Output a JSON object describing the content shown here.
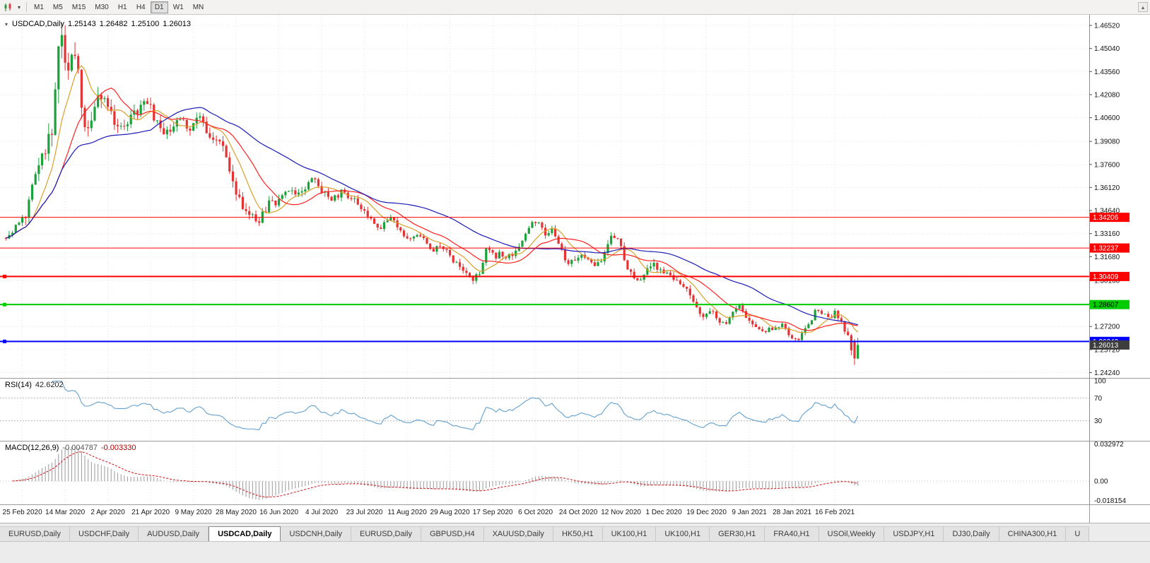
{
  "toolbar": {
    "timeframes": [
      {
        "label": "M1",
        "active": false
      },
      {
        "label": "M5",
        "active": false
      },
      {
        "label": "M15",
        "active": false
      },
      {
        "label": "M30",
        "active": false
      },
      {
        "label": "H1",
        "active": false
      },
      {
        "label": "H4",
        "active": false
      },
      {
        "label": "D1",
        "active": true
      },
      {
        "label": "W1",
        "active": false
      },
      {
        "label": "MN",
        "active": false
      }
    ],
    "overflow_icon": "▴",
    "chart_dropdown_icon": "▾"
  },
  "chart_header": {
    "symbol": "USDCAD,Daily",
    "open": "1.25143",
    "high": "1.26482",
    "low": "1.25100",
    "close": "1.26013"
  },
  "indicators": {
    "rsi": {
      "name": "RSI(14)",
      "value": "42.6202"
    },
    "macd": {
      "name": "MACD(12,26,9)",
      "value_main": "-0.004787",
      "value_signal": "-0.003330"
    }
  },
  "tabs": [
    {
      "label": "EURUSD,Daily",
      "active": false
    },
    {
      "label": "USDCHF,Daily",
      "active": false
    },
    {
      "label": "AUDUSD,Daily",
      "active": false
    },
    {
      "label": "USDCAD,Daily",
      "active": true
    },
    {
      "label": "USDCNH,Daily",
      "active": false
    },
    {
      "label": "EURUSD,Daily",
      "active": false
    },
    {
      "label": "GBPUSD,H4",
      "active": false
    },
    {
      "label": "XAUUSD,Daily",
      "active": false
    },
    {
      "label": "HK50,H1",
      "active": false
    },
    {
      "label": "UK100,H1",
      "active": false
    },
    {
      "label": "UK100,H1",
      "active": false
    },
    {
      "label": "GER30,H1",
      "active": false
    },
    {
      "label": "FRA40,H1",
      "active": false
    },
    {
      "label": "USOil,Weekly",
      "active": false
    },
    {
      "label": "USDJPY,H1",
      "active": false
    },
    {
      "label": "DJ30,Daily",
      "active": false
    },
    {
      "label": "CHINA300,H1",
      "active": false
    },
    {
      "label": "U",
      "active": false
    }
  ],
  "chart_data": {
    "type": "candlestick",
    "symbol": "USDCAD",
    "timeframe": "Daily",
    "last_bar": {
      "open": 1.25143,
      "high": 1.26482,
      "low": 1.251,
      "close": 1.26013
    },
    "y_range": [
      1.239,
      1.472
    ],
    "price_ticks": [
      "1.46520",
      "1.45040",
      "1.43560",
      "1.42080",
      "1.40600",
      "1.39080",
      "1.37600",
      "1.36120",
      "1.34640",
      "1.33160",
      "1.31680",
      "1.30160",
      "1.28680",
      "1.27200",
      "1.25720",
      "1.24240"
    ],
    "x_labels": [
      "25 Feb 2020",
      "14 Mar 2020",
      "2 Apr 2020",
      "21 Apr 2020",
      "9 May 2020",
      "28 May 2020",
      "16 Jun 2020",
      "4 Jul 2020",
      "23 Jul 2020",
      "11 Aug 2020",
      "29 Aug 2020",
      "17 Sep 2020",
      "6 Oct 2020",
      "24 Oct 2020",
      "12 Nov 2020",
      "1 Dec 2020",
      "19 Dec 2020",
      "9 Jan 2021",
      "28 Jan 2021",
      "16 Feb 2021"
    ],
    "n_candles": 260,
    "x_label_first_index": 5,
    "x_label_step": 13,
    "seed": 20210219,
    "up_color": "#1ba13a",
    "down_color": "#e63232",
    "close_anchors": [
      [
        0,
        1.329
      ],
      [
        3,
        1.333
      ],
      [
        5,
        1.34
      ],
      [
        7,
        1.342
      ],
      [
        9,
        1.366
      ],
      [
        11,
        1.375
      ],
      [
        13,
        1.383
      ],
      [
        15,
        1.405
      ],
      [
        16,
        1.435
      ],
      [
        17,
        1.46
      ],
      [
        18,
        1.448
      ],
      [
        19,
        1.434
      ],
      [
        21,
        1.447
      ],
      [
        23,
        1.428
      ],
      [
        25,
        1.4
      ],
      [
        27,
        1.409
      ],
      [
        29,
        1.418
      ],
      [
        31,
        1.421
      ],
      [
        33,
        1.406
      ],
      [
        35,
        1.398
      ],
      [
        37,
        1.403
      ],
      [
        39,
        1.409
      ],
      [
        41,
        1.412
      ],
      [
        43,
        1.417
      ],
      [
        45,
        1.41
      ],
      [
        47,
        1.401
      ],
      [
        49,
        1.394
      ],
      [
        51,
        1.399
      ],
      [
        53,
        1.406
      ],
      [
        55,
        1.402
      ],
      [
        57,
        1.397
      ],
      [
        59,
        1.405
      ],
      [
        61,
        1.402
      ],
      [
        63,
        1.393
      ],
      [
        65,
        1.39
      ],
      [
        67,
        1.386
      ],
      [
        69,
        1.368
      ],
      [
        71,
        1.355
      ],
      [
        73,
        1.348
      ],
      [
        75,
        1.344
      ],
      [
        77,
        1.338
      ],
      [
        79,
        1.345
      ],
      [
        81,
        1.354
      ],
      [
        83,
        1.352
      ],
      [
        85,
        1.357
      ],
      [
        87,
        1.36
      ],
      [
        89,
        1.355
      ],
      [
        91,
        1.36
      ],
      [
        93,
        1.365
      ],
      [
        95,
        1.367
      ],
      [
        97,
        1.359
      ],
      [
        99,
        1.354
      ],
      [
        101,
        1.356
      ],
      [
        103,
        1.358
      ],
      [
        105,
        1.355
      ],
      [
        107,
        1.352
      ],
      [
        109,
        1.346
      ],
      [
        111,
        1.341
      ],
      [
        113,
        1.337
      ],
      [
        115,
        1.335
      ],
      [
        117,
        1.342
      ],
      [
        119,
        1.338
      ],
      [
        121,
        1.331
      ],
      [
        123,
        1.328
      ],
      [
        125,
        1.332
      ],
      [
        127,
        1.329
      ],
      [
        129,
        1.325
      ],
      [
        131,
        1.321
      ],
      [
        133,
        1.323
      ],
      [
        135,
        1.32
      ],
      [
        137,
        1.314
      ],
      [
        139,
        1.308
      ],
      [
        141,
        1.304
      ],
      [
        143,
        1.301
      ],
      [
        145,
        1.309
      ],
      [
        147,
        1.322
      ],
      [
        149,
        1.317
      ],
      [
        151,
        1.319
      ],
      [
        153,
        1.316
      ],
      [
        155,
        1.318
      ],
      [
        157,
        1.324
      ],
      [
        159,
        1.332
      ],
      [
        161,
        1.34
      ],
      [
        163,
        1.338
      ],
      [
        165,
        1.331
      ],
      [
        167,
        1.333
      ],
      [
        169,
        1.324
      ],
      [
        171,
        1.314
      ],
      [
        173,
        1.313
      ],
      [
        175,
        1.317
      ],
      [
        177,
        1.318
      ],
      [
        179,
        1.312
      ],
      [
        181,
        1.312
      ],
      [
        183,
        1.32
      ],
      [
        185,
        1.332
      ],
      [
        187,
        1.327
      ],
      [
        189,
        1.313
      ],
      [
        191,
        1.306
      ],
      [
        193,
        1.303
      ],
      [
        195,
        1.306
      ],
      [
        197,
        1.313
      ],
      [
        199,
        1.309
      ],
      [
        201,
        1.306
      ],
      [
        203,
        1.303
      ],
      [
        205,
        1.3
      ],
      [
        207,
        1.296
      ],
      [
        209,
        1.292
      ],
      [
        211,
        1.283
      ],
      [
        213,
        1.279
      ],
      [
        215,
        1.282
      ],
      [
        217,
        1.277
      ],
      [
        219,
        1.274
      ],
      [
        221,
        1.277
      ],
      [
        223,
        1.286
      ],
      [
        225,
        1.281
      ],
      [
        227,
        1.276
      ],
      [
        229,
        1.271
      ],
      [
        231,
        1.268
      ],
      [
        233,
        1.272
      ],
      [
        235,
        1.27
      ],
      [
        237,
        1.273
      ],
      [
        239,
        1.267
      ],
      [
        241,
        1.263
      ],
      [
        243,
        1.268
      ],
      [
        245,
        1.274
      ],
      [
        247,
        1.283
      ],
      [
        249,
        1.279
      ],
      [
        251,
        1.278
      ],
      [
        253,
        1.281
      ],
      [
        255,
        1.272
      ],
      [
        256,
        1.268
      ],
      [
        257,
        1.264
      ],
      [
        258,
        1.252
      ],
      [
        259,
        1.26
      ]
    ],
    "vol_anchors": [
      [
        0,
        0.0045
      ],
      [
        8,
        0.01
      ],
      [
        14,
        0.016
      ],
      [
        17,
        0.02
      ],
      [
        20,
        0.016
      ],
      [
        24,
        0.014
      ],
      [
        30,
        0.01
      ],
      [
        40,
        0.008
      ],
      [
        55,
        0.006
      ],
      [
        68,
        0.008
      ],
      [
        80,
        0.006
      ],
      [
        100,
        0.005
      ],
      [
        120,
        0.0045
      ],
      [
        143,
        0.005
      ],
      [
        160,
        0.0045
      ],
      [
        185,
        0.005
      ],
      [
        210,
        0.0045
      ],
      [
        230,
        0.0035
      ],
      [
        250,
        0.0035
      ],
      [
        257,
        0.006
      ],
      [
        259,
        0.007
      ]
    ],
    "overrides": [
      {
        "i": 258,
        "o": 1.2628,
        "h": 1.264,
        "l": 1.2473,
        "c": 1.2515
      },
      {
        "i": 259,
        "o": 1.25143,
        "h": 1.26482,
        "l": 1.251,
        "c": 1.26013
      }
    ],
    "moving_averages": [
      {
        "period": 9,
        "color": "#d99f2b"
      },
      {
        "period": 18,
        "color": "#ff2020"
      },
      {
        "period": 45,
        "color": "#1a1ab8"
      }
    ],
    "hlines": [
      {
        "value": 1.34206,
        "label": "1.34206",
        "color": "#ff0000",
        "width": 1,
        "text": "#ffffff",
        "handle": false
      },
      {
        "value": 1.32237,
        "label": "1.32237",
        "color": "#ff0000",
        "width": 1,
        "text": "#ffffff",
        "handle": false
      },
      {
        "value": 1.30409,
        "label": "1.30409",
        "color": "#ff0000",
        "width": 2,
        "text": "#ffffff",
        "handle": true
      },
      {
        "value": 1.28607,
        "label": "1.28607",
        "color": "#00cc00",
        "width": 2,
        "text": "#000000",
        "handle": true
      },
      {
        "value": 1.26243,
        "label": "1.26243",
        "color": "#0000ff",
        "width": 2,
        "text": "#ffffff",
        "handle": true
      }
    ],
    "current_price": {
      "value": 1.26013,
      "label": "1.26013",
      "bg": "#3d3d3d",
      "text": "#ffffff"
    },
    "rsi": {
      "period": 14,
      "color": "#62a0d0",
      "range": [
        0,
        100
      ],
      "levels": [
        {
          "value": 100,
          "label": "100"
        },
        {
          "value": 70,
          "label": "70"
        },
        {
          "value": 30,
          "label": "30"
        }
      ]
    },
    "macd": {
      "fast": 12,
      "slow": 26,
      "signal": 9,
      "hist_color": "#9a9a9a",
      "signal_color": "#d01010",
      "range": [
        -0.018154,
        0.032972
      ],
      "axis_labels": [
        {
          "value": 0.032972,
          "label": "0.032972"
        },
        {
          "value": 0,
          "label": "0.00"
        },
        {
          "value": -0.018154,
          "label": "-0.018154"
        }
      ]
    }
  }
}
